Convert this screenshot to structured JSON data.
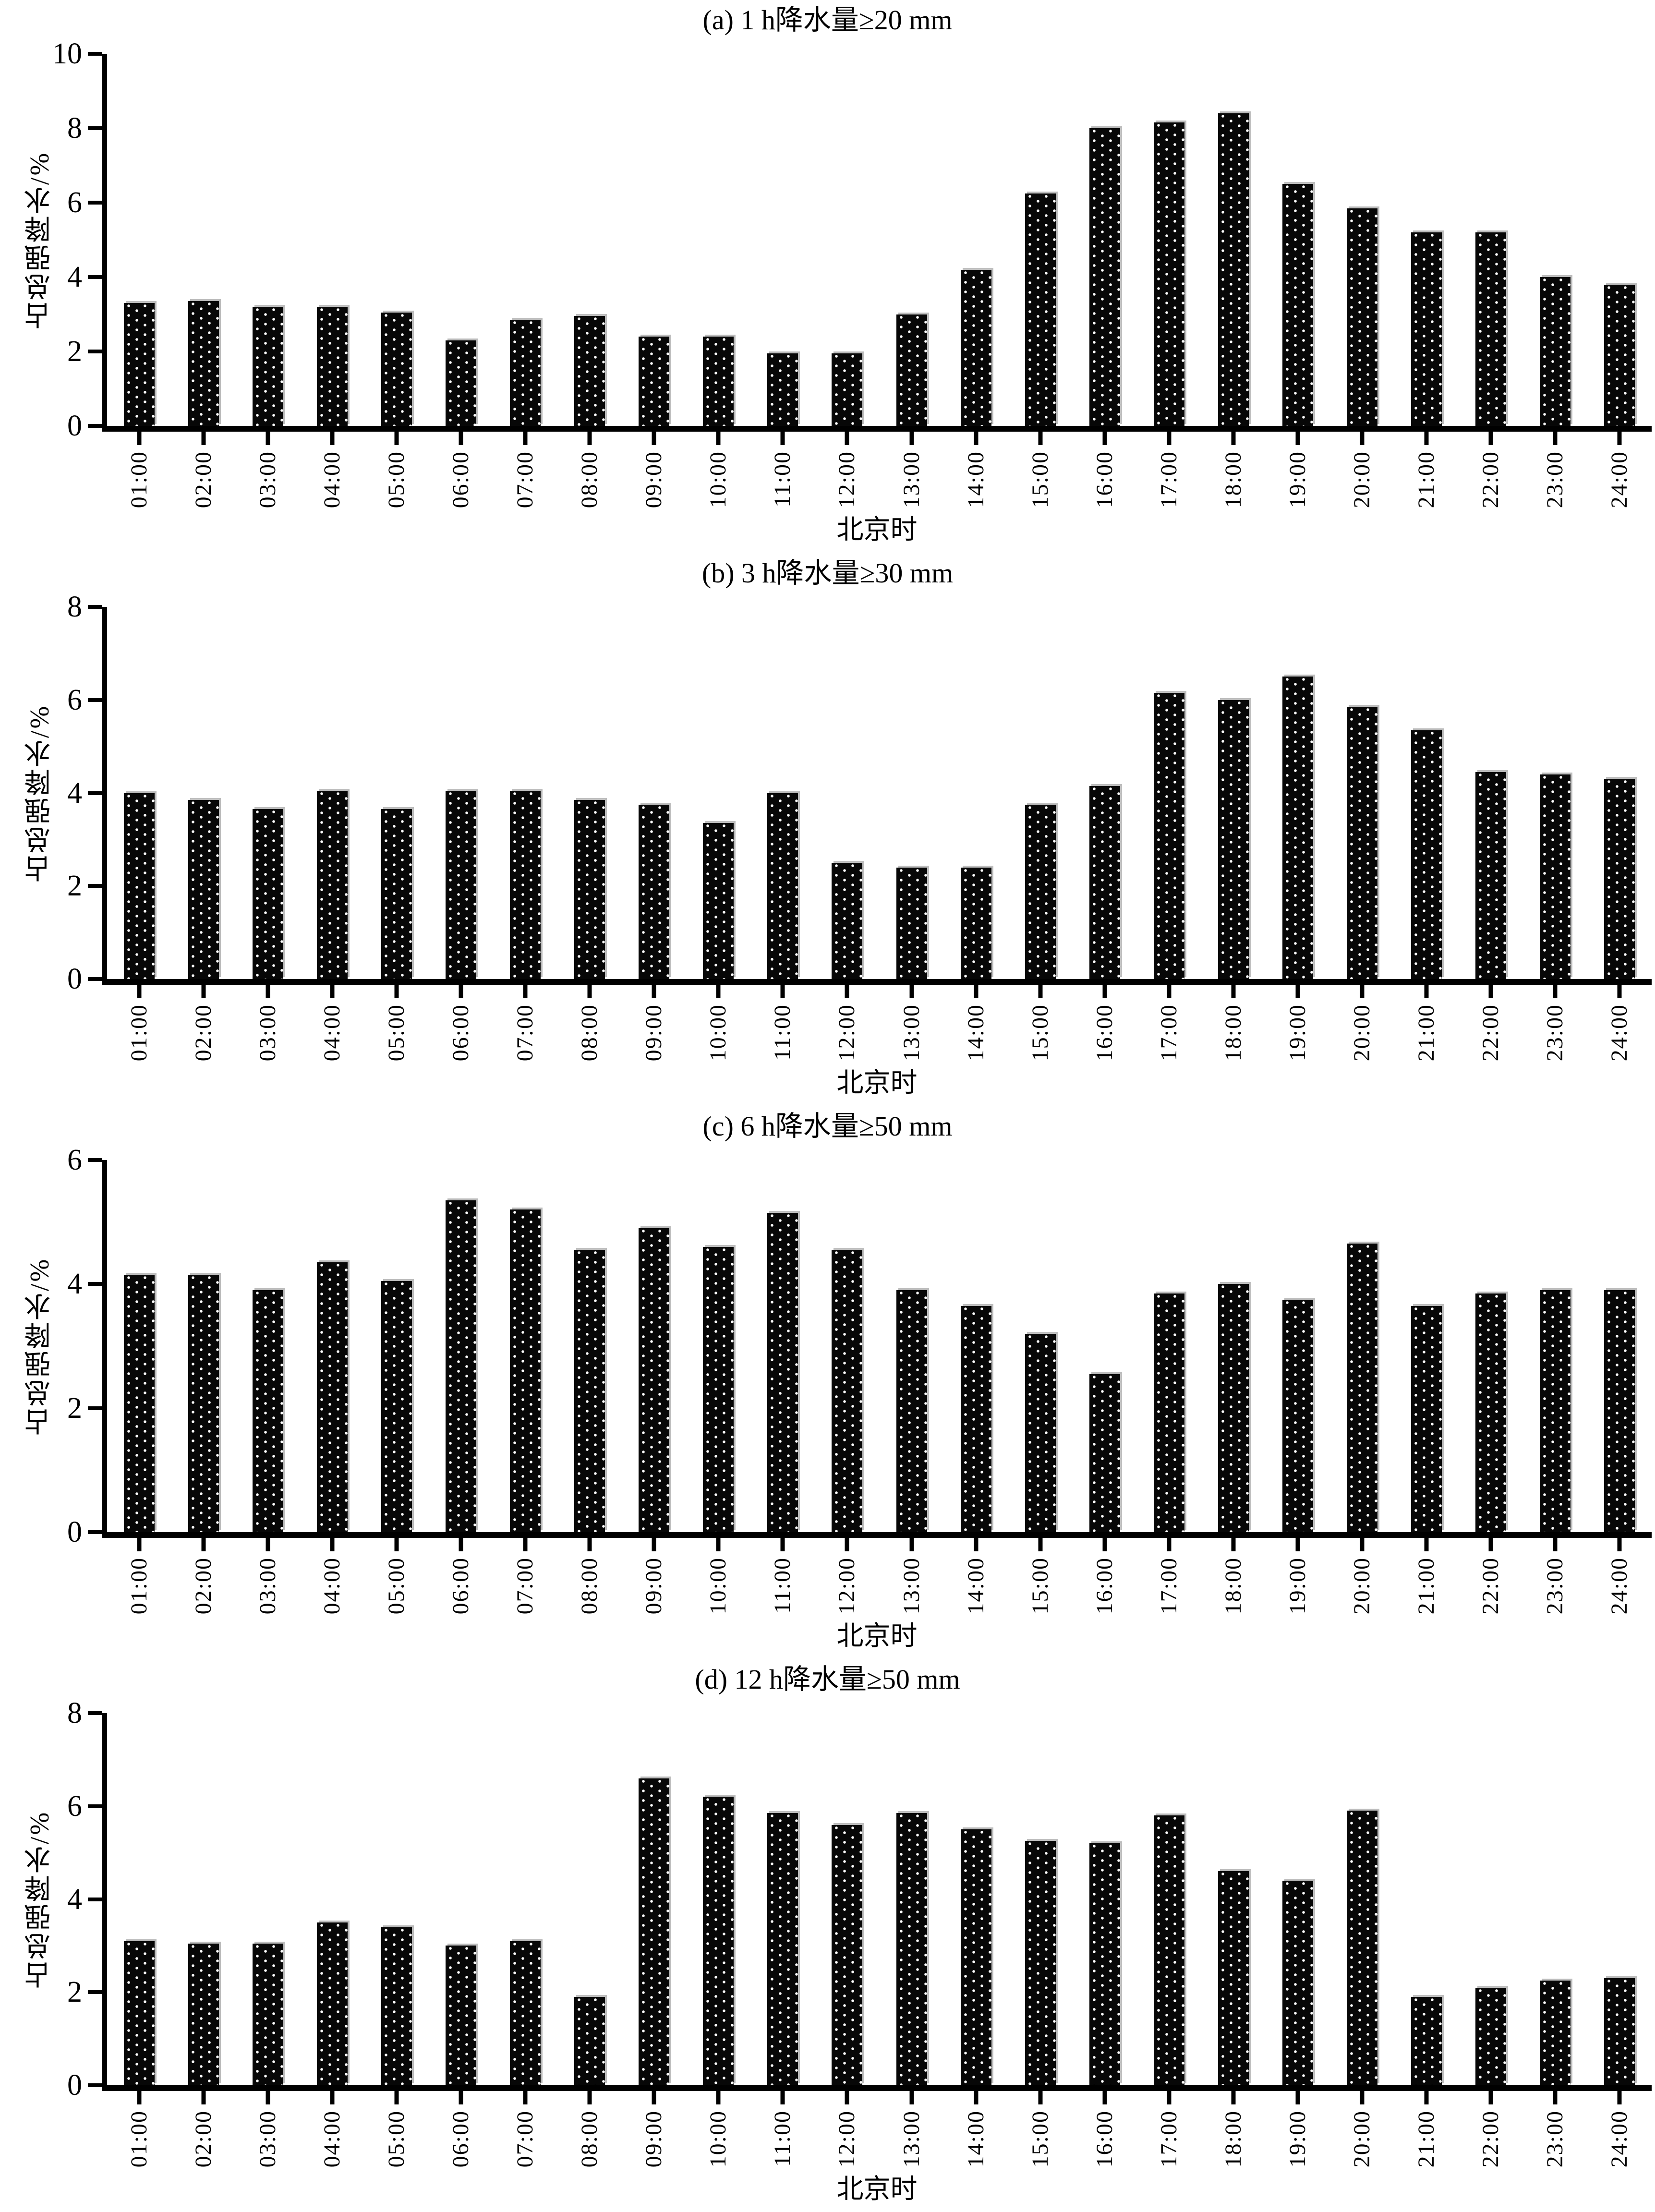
{
  "figure": {
    "background": "#ffffff",
    "bar_color": "#070707",
    "bar_dot_color": "#ffffff",
    "axis_color": "#000000"
  },
  "chart_data": [
    {
      "id": "a",
      "type": "bar",
      "title": "(a) 1 h降水量≥20 mm",
      "xlabel": "北京时",
      "ylabel": "占总强降水/%",
      "ylim": [
        0,
        10
      ],
      "yticks": [
        0,
        2,
        4,
        6,
        8,
        10
      ],
      "grid": false,
      "categories": [
        "01:00",
        "02:00",
        "03:00",
        "04:00",
        "05:00",
        "06:00",
        "07:00",
        "08:00",
        "09:00",
        "10:00",
        "11:00",
        "12:00",
        "13:00",
        "14:00",
        "15:00",
        "16:00",
        "17:00",
        "18:00",
        "19:00",
        "20:00",
        "21:00",
        "22:00",
        "23:00",
        "24:00"
      ],
      "values": [
        3.3,
        3.35,
        3.2,
        3.2,
        3.05,
        2.3,
        2.85,
        2.95,
        2.4,
        2.4,
        1.95,
        1.95,
        3.0,
        4.2,
        6.25,
        8.0,
        8.15,
        8.4,
        6.5,
        5.85,
        5.2,
        5.2,
        4.0,
        3.8
      ]
    },
    {
      "id": "b",
      "type": "bar",
      "title": "(b) 3 h降水量≥30 mm",
      "xlabel": "北京时",
      "ylabel": "占总强降水/%",
      "ylim": [
        0,
        8
      ],
      "yticks": [
        0,
        2,
        4,
        6,
        8
      ],
      "grid": false,
      "categories": [
        "01:00",
        "02:00",
        "03:00",
        "04:00",
        "05:00",
        "06:00",
        "07:00",
        "08:00",
        "09:00",
        "10:00",
        "11:00",
        "12:00",
        "13:00",
        "14:00",
        "15:00",
        "16:00",
        "17:00",
        "18:00",
        "19:00",
        "20:00",
        "21:00",
        "22:00",
        "23:00",
        "24:00"
      ],
      "values": [
        4.0,
        3.85,
        3.65,
        4.05,
        3.65,
        4.05,
        4.05,
        3.85,
        3.75,
        3.35,
        4.0,
        2.5,
        2.4,
        2.4,
        3.75,
        4.15,
        6.15,
        6.0,
        6.5,
        5.85,
        5.35,
        4.45,
        4.4,
        4.3
      ]
    },
    {
      "id": "c",
      "type": "bar",
      "title": "(c) 6 h降水量≥50 mm",
      "xlabel": "北京时",
      "ylabel": "占总强降水/%",
      "ylim": [
        0,
        6
      ],
      "yticks": [
        0,
        2,
        4,
        6
      ],
      "grid": false,
      "categories": [
        "01:00",
        "02:00",
        "03:00",
        "04:00",
        "05:00",
        "06:00",
        "07:00",
        "08:00",
        "09:00",
        "10:00",
        "11:00",
        "12:00",
        "13:00",
        "14:00",
        "15:00",
        "16:00",
        "17:00",
        "18:00",
        "19:00",
        "20:00",
        "21:00",
        "22:00",
        "23:00",
        "24:00"
      ],
      "values": [
        4.15,
        4.15,
        3.9,
        4.35,
        4.05,
        5.35,
        5.2,
        4.55,
        4.9,
        4.6,
        5.15,
        4.55,
        3.9,
        3.65,
        3.2,
        2.55,
        3.85,
        4.0,
        3.75,
        4.65,
        3.65,
        3.85,
        3.9,
        3.9
      ]
    },
    {
      "id": "d",
      "type": "bar",
      "title": "(d) 12 h降水量≥50 mm",
      "xlabel": "北京时",
      "ylabel": "占总强降水/%",
      "ylim": [
        0,
        8
      ],
      "yticks": [
        0,
        2,
        4,
        6,
        8
      ],
      "grid": false,
      "categories": [
        "01:00",
        "02:00",
        "03:00",
        "04:00",
        "05:00",
        "06:00",
        "07:00",
        "08:00",
        "09:00",
        "10:00",
        "11:00",
        "12:00",
        "13:00",
        "14:00",
        "15:00",
        "16:00",
        "17:00",
        "18:00",
        "19:00",
        "20:00",
        "21:00",
        "22:00",
        "23:00",
        "24:00"
      ],
      "values": [
        3.1,
        3.05,
        3.05,
        3.5,
        3.4,
        3.0,
        3.1,
        1.9,
        6.6,
        6.2,
        5.85,
        5.6,
        5.85,
        5.5,
        5.25,
        5.2,
        5.8,
        4.6,
        4.4,
        5.9,
        1.9,
        2.1,
        2.25,
        2.3
      ]
    }
  ]
}
